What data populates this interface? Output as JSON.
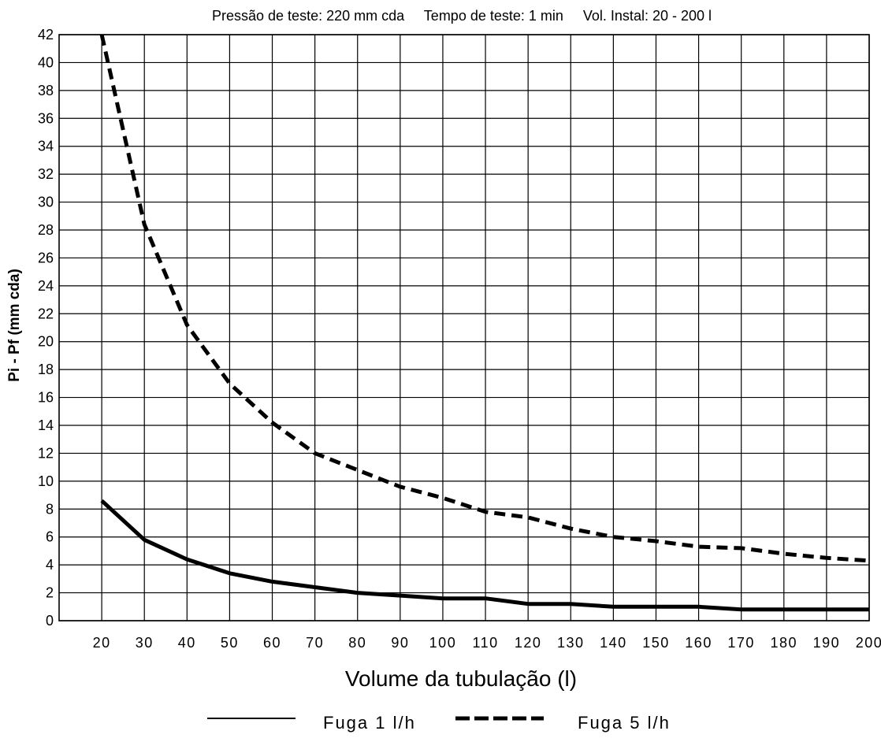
{
  "chart_data": {
    "type": "line",
    "title": "Pressão de teste: 220 mm cda     Tempo de teste: 1 min     Vol. Instal: 20 - 200 l",
    "xlabel": "Volume da tubulação (l)",
    "ylabel": "Pi - Pf (mm cda)",
    "x": [
      20,
      30,
      40,
      50,
      60,
      70,
      80,
      90,
      100,
      110,
      120,
      130,
      140,
      150,
      160,
      170,
      180,
      190,
      200
    ],
    "xlim": [
      10,
      200
    ],
    "ylim": [
      0,
      42
    ],
    "yticks": [
      0,
      2,
      4,
      6,
      8,
      10,
      12,
      14,
      16,
      18,
      20,
      22,
      24,
      26,
      28,
      30,
      32,
      34,
      36,
      38,
      40,
      42
    ],
    "xtick_labels": [
      "20",
      "30",
      "40",
      "50",
      "60",
      "70",
      "80",
      "90",
      "100",
      "110",
      "120",
      "130",
      "140",
      "150",
      "160",
      "170",
      "180",
      "190",
      "200"
    ],
    "grid": true,
    "legend_position": "bottom",
    "series": [
      {
        "name": "Fuga 1 l/h",
        "style": "solid",
        "color": "#000000",
        "values": [
          8.6,
          5.8,
          4.4,
          3.4,
          2.8,
          2.4,
          2.0,
          1.8,
          1.6,
          1.6,
          1.2,
          1.2,
          1.0,
          1.0,
          1.0,
          0.8,
          0.8,
          0.8,
          0.8
        ]
      },
      {
        "name": "Fuga 5 l/h",
        "style": "dashed",
        "color": "#000000",
        "values": [
          42.0,
          28.4,
          21.2,
          17.0,
          14.2,
          12.0,
          10.8,
          9.6,
          8.8,
          7.8,
          7.4,
          6.6,
          6.0,
          5.7,
          5.3,
          5.2,
          4.8,
          4.5,
          4.3
        ]
      }
    ]
  }
}
